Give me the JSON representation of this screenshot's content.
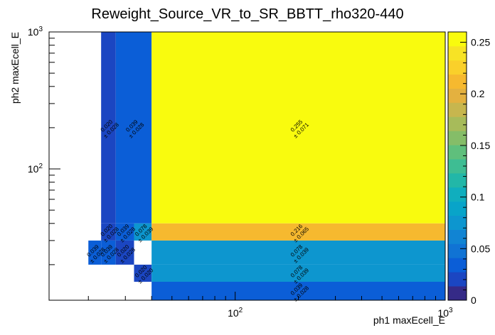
{
  "chart_data": {
    "type": "heatmap",
    "title": "Reweight_Source_VR_to_SR_BBTT_rho320-440",
    "xlabel": "ph1 maxEcell_E",
    "ylabel": "ph2 maxEcell_E",
    "x_scale": "log",
    "y_scale": "log",
    "xlim": [
      13,
      1000
    ],
    "ylim": [
      11,
      1000
    ],
    "x_tick_labels": [
      {
        "value": 100,
        "label": "10",
        "exp": "2"
      },
      {
        "value": 1000,
        "label": "10",
        "exp": "3"
      }
    ],
    "y_tick_labels": [
      {
        "value": 100,
        "label": "10",
        "exp": "2"
      },
      {
        "value": 1000,
        "label": "10",
        "exp": "3"
      }
    ],
    "colorbar": {
      "min": 0,
      "max": 0.26,
      "ticks": [
        "0",
        "0.05",
        "0.1",
        "0.15",
        "0.2",
        "0.25"
      ],
      "tick_values": [
        0,
        0.05,
        0.1,
        0.15,
        0.2,
        0.25
      ],
      "colors": [
        "#352a87",
        "#1b46c2",
        "#0b5ed7",
        "#1073d4",
        "#1184d3",
        "#0d96cf",
        "#08a4c9",
        "#10aebe",
        "#22b7a8",
        "#3ebd93",
        "#5fbf7c",
        "#85bd68",
        "#a7bb5a",
        "#c7b64e",
        "#e4b13f",
        "#f6b92f",
        "#fad02a",
        "#f7e325",
        "#f9fb0e"
      ]
    },
    "cells": [
      {
        "x": [
          23,
          27
        ],
        "y": [
          40,
          1000
        ],
        "value": 0.02,
        "text": "0.020",
        "err": "± 0.028"
      },
      {
        "x": [
          27,
          40
        ],
        "y": [
          40,
          1000
        ],
        "value": 0.039,
        "text": "0.039",
        "err": "± 0.028"
      },
      {
        "x": [
          40,
          1000
        ],
        "y": [
          40,
          1000
        ],
        "value": 0.255,
        "text": "0.255",
        "err": "± 0.071"
      },
      {
        "x": [
          23,
          27
        ],
        "y": [
          30,
          40
        ],
        "value": 0.02,
        "text": "0.020",
        "err": "± 0.028"
      },
      {
        "x": [
          27,
          33
        ],
        "y": [
          30,
          40
        ],
        "value": 0.039,
        "text": "0.039",
        "err": "± 0.028"
      },
      {
        "x": [
          33,
          40
        ],
        "y": [
          30,
          40
        ],
        "value": 0.078,
        "text": "0.078",
        "err": "± 0.039"
      },
      {
        "x": [
          40,
          1000
        ],
        "y": [
          30,
          40
        ],
        "value": 0.216,
        "text": "0.216",
        "err": "± 0.065"
      },
      {
        "x": [
          20,
          23
        ],
        "y": [
          20,
          30
        ],
        "value": 0.039,
        "text": "0.039",
        "err": "± 0.028"
      },
      {
        "x": [
          23,
          27
        ],
        "y": [
          20,
          30
        ],
        "value": 0.039,
        "text": "0.039",
        "err": "± 0.028"
      },
      {
        "x": [
          27,
          33
        ],
        "y": [
          20,
          30
        ],
        "value": 0.02,
        "text": "0.020",
        "err": "± 0.028"
      },
      {
        "x": [
          40,
          1000
        ],
        "y": [
          20,
          30
        ],
        "value": 0.078,
        "text": "0.078",
        "err": "± 0.039"
      },
      {
        "x": [
          33,
          40
        ],
        "y": [
          15,
          20
        ],
        "value": 0.02,
        "text": "0.020",
        "err": "± 0.020"
      },
      {
        "x": [
          40,
          1000
        ],
        "y": [
          15,
          20
        ],
        "value": 0.078,
        "text": "0.078",
        "err": "± 0.039"
      },
      {
        "x": [
          40,
          1000
        ],
        "y": [
          11,
          15
        ],
        "value": 0.039,
        "text": "0.039",
        "err": "± 0.028"
      }
    ]
  }
}
